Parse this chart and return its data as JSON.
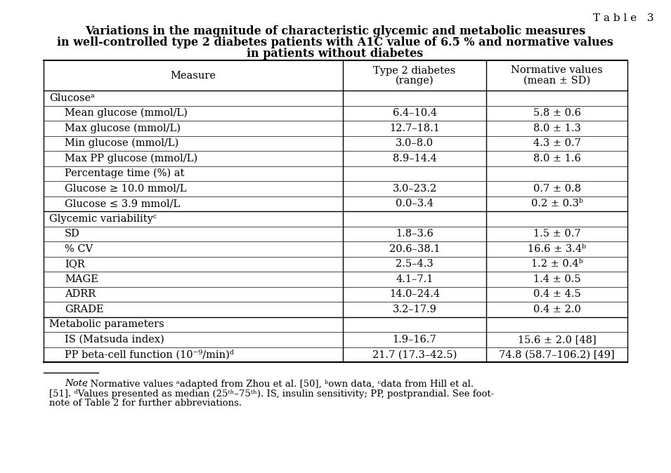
{
  "table_label": "T a b l e   3",
  "title_line1": "Variations in the magnitude of characteristic glycemic and metabolic measures",
  "title_line2": "in well-controlled type 2 diabetes patients with A1C value of 6.5 % and normative values",
  "title_line3": "in patients without diabetes",
  "rows": [
    {
      "label": "Glucoseᵃ",
      "indent": false,
      "category": true,
      "col2": "",
      "col3": ""
    },
    {
      "label": "Mean glucose (mmol/L)",
      "indent": true,
      "category": false,
      "col2": "6.4–10.4",
      "col3": "5.8 ± 0.6"
    },
    {
      "label": "Max glucose (mmol/L)",
      "indent": true,
      "category": false,
      "col2": "12.7–18.1",
      "col3": "8.0 ± 1.3"
    },
    {
      "label": "Min glucose (mmol/L)",
      "indent": true,
      "category": false,
      "col2": "3.0–8.0",
      "col3": "4.3 ± 0.7"
    },
    {
      "label": "Max PP glucose (mmol/L)",
      "indent": true,
      "category": false,
      "col2": "8.9–14.4",
      "col3": "8.0 ± 1.6"
    },
    {
      "label": "Percentage time (%) at",
      "indent": true,
      "category": false,
      "col2": "",
      "col3": ""
    },
    {
      "label": "Glucose ≥ 10.0 mmol/L",
      "indent": true,
      "category": false,
      "col2": "3.0–23.2",
      "col3": "0.7 ± 0.8"
    },
    {
      "label": "Glucose ≤ 3.9 mmol/L",
      "indent": true,
      "category": false,
      "col2": "0.0–3.4",
      "col3": "0.2 ± 0.3ᵇ"
    },
    {
      "label": "Glycemic variabilityᶜ",
      "indent": false,
      "category": true,
      "col2": "",
      "col3": ""
    },
    {
      "label": "SD",
      "indent": true,
      "category": false,
      "col2": "1.8–3.6",
      "col3": "1.5 ± 0.7"
    },
    {
      "label": "% CV",
      "indent": true,
      "category": false,
      "col2": "20.6–38.1",
      "col3": "16.6 ± 3.4ᵇ"
    },
    {
      "label": "IQR",
      "indent": true,
      "category": false,
      "col2": "2.5–4.3",
      "col3": "1.2 ± 0.4ᵇ"
    },
    {
      "label": "MAGE",
      "indent": true,
      "category": false,
      "col2": "4.1–7.1",
      "col3": "1.4 ± 0.5"
    },
    {
      "label": "ADRR",
      "indent": true,
      "category": false,
      "col2": "14.0–24.4",
      "col3": "0.4 ± 4.5"
    },
    {
      "label": "GRADE",
      "indent": true,
      "category": false,
      "col2": "3.2–17.9",
      "col3": "0.4 ± 2.0"
    },
    {
      "label": "Metabolic parameters",
      "indent": false,
      "category": true,
      "col2": "",
      "col3": ""
    },
    {
      "label": "IS (Matsuda index)",
      "indent": true,
      "category": false,
      "col2": "1.9–16.7",
      "col3": "15.6 ± 2.0 [48]"
    },
    {
      "label": "PP beta-cell function (10⁻⁹/min)ᵈ",
      "indent": true,
      "category": false,
      "col2": "21.7 (17.3–42.5)",
      "col3": "74.8 (58.7–106.2) [49]"
    }
  ],
  "bg_color": "#ffffff",
  "text_color": "#000000",
  "font_size": 10.5,
  "fn_font_size": 9.5,
  "title_font_size": 11.5
}
